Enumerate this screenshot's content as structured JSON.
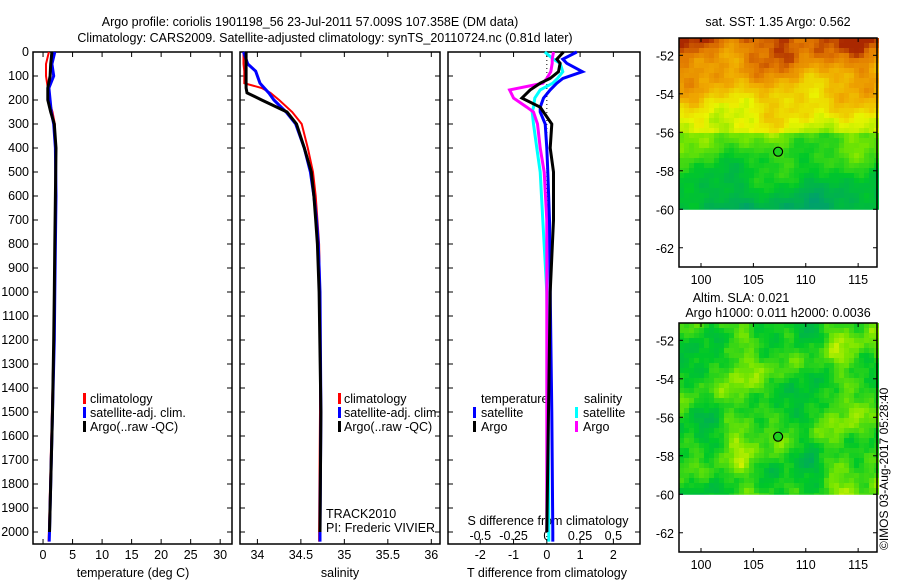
{
  "header": {
    "title_line1": "Argo profile: coriolis 1901198_56 23-Jul-2011 57.009S 107.358E (DM data)",
    "title_line2": "Climatology: CARS2009. Satellite-adjusted climatology: synTS_20110724.nc (0.81d later)"
  },
  "colors": {
    "climatology": "#ff0000",
    "satellite": "#0000ff",
    "argo": "#000000",
    "sal_satellite": "#00ffff",
    "sal_argo": "#ff00ff"
  },
  "legend": {
    "climatology": "climatology",
    "satellite": "satellite-adj. clim.",
    "argo": "Argo(..raw -QC)",
    "diff_temperature": "temperature",
    "diff_salinity": "salinity",
    "diff_satellite": "satellite",
    "diff_argo": "Argo"
  },
  "annotation": {
    "track": "TRACK2010",
    "pi": "PI: Frederic VIVIER"
  },
  "footer": {
    "copyright": "©IMOS 03-Aug-2017 05:28:40"
  },
  "chart_data": [
    {
      "type": "line",
      "title": "",
      "xlabel": "temperature (deg C)",
      "ylabel": "",
      "xlim": [
        -1.7,
        32
      ],
      "ylim": [
        0,
        2050
      ],
      "xticks": [
        "0",
        "5",
        "10",
        "15",
        "20",
        "25",
        "30"
      ],
      "yticks": [
        "0",
        "100",
        "200",
        "300",
        "400",
        "500",
        "600",
        "700",
        "800",
        "900",
        "1000",
        "1100",
        "1200",
        "1300",
        "1400",
        "1500",
        "1600",
        "1700",
        "1800",
        "1900",
        "2000"
      ],
      "depth": [
        0,
        50,
        100,
        150,
        200,
        250,
        300,
        400,
        600,
        800,
        1000,
        1200,
        1500,
        1800,
        2000,
        2040
      ],
      "series": [
        {
          "name": "climatology",
          "values": [
            1.0,
            0.5,
            0.5,
            0.8,
            1.0,
            1.6,
            2.0,
            2.1,
            2.1,
            2.0,
            1.9,
            1.8,
            1.5,
            1.2,
            1.0,
            0.95
          ]
        },
        {
          "name": "satellite-adj. clim.",
          "values": [
            2.0,
            1.5,
            1.8,
            1.0,
            1.2,
            1.4,
            1.8,
            2.1,
            2.2,
            2.1,
            2.0,
            1.9,
            1.6,
            1.3,
            1.1,
            1.05
          ]
        },
        {
          "name": "Argo(..raw -QC)",
          "values": [
            1.5,
            1.3,
            1.2,
            0.8,
            0.8,
            1.3,
            1.9,
            2.2,
            2.1,
            2.0,
            1.9,
            1.8,
            1.6,
            1.3,
            1.1
          ]
        }
      ]
    },
    {
      "type": "line",
      "xlabel": "salinity",
      "xlim": [
        33.8,
        36.1
      ],
      "ylim": [
        0,
        2050
      ],
      "xticks": [
        "34",
        "34.5",
        "35",
        "35.5",
        "36"
      ],
      "depth": [
        0,
        50,
        80,
        120,
        130,
        150,
        170,
        200,
        250,
        300,
        400,
        500,
        600,
        700,
        800,
        1000,
        1500,
        2000,
        2040
      ],
      "series": [
        {
          "name": "climatology",
          "values": [
            33.84,
            33.84,
            33.85,
            33.85,
            33.85,
            34.05,
            34.15,
            34.25,
            34.4,
            34.51,
            34.58,
            34.64,
            34.67,
            34.69,
            34.71,
            34.72,
            34.72,
            34.71,
            34.71
          ]
        },
        {
          "name": "satellite-adj. clim.",
          "values": [
            33.84,
            33.89,
            33.98,
            34.02,
            34.03,
            34.08,
            34.13,
            34.19,
            34.33,
            34.44,
            34.54,
            34.61,
            34.65,
            34.68,
            34.7,
            34.72,
            34.73,
            34.72,
            34.72
          ]
        },
        {
          "name": "Argo(..raw -QC)",
          "values": [
            33.87,
            33.87,
            33.87,
            33.87,
            33.87,
            33.87,
            33.88,
            34.05,
            34.34,
            34.45,
            34.54,
            34.62,
            34.65,
            34.67,
            34.69,
            34.71,
            34.73,
            34.72
          ]
        }
      ]
    },
    {
      "type": "line",
      "xlabel": "T difference from climatology",
      "x2label": "S difference from climatology",
      "xlim": [
        -2.97,
        2.8
      ],
      "x2lim": [
        -0.7425,
        0.7
      ],
      "ylim": [
        0,
        2050
      ],
      "xticks": [
        "-2",
        "-1",
        "0",
        "1",
        "2"
      ],
      "x2ticks": [
        "-0.5",
        "-0.25",
        "0",
        "0.25",
        "0.5"
      ],
      "depth": [
        0,
        30,
        47,
        82,
        110,
        130,
        158,
        192,
        230,
        250,
        300,
        400,
        500,
        700,
        1000,
        1500,
        2000,
        2040
      ],
      "series": [
        {
          "name": "temperature satellite",
          "axis": "T",
          "values": [
            0.9,
            0.48,
            0.6,
            1.07,
            0.48,
            0.3,
            0.1,
            -0.1,
            -0.2,
            -0.2,
            -0.05,
            0.0,
            0.03,
            0.08,
            0.1,
            0.15,
            0.18,
            0.18
          ]
        },
        {
          "name": "temperature Argo",
          "axis": "T",
          "values": [
            0.5,
            0.3,
            0.4,
            0.35,
            0.1,
            -0.2,
            -0.5,
            -0.75,
            -0.2,
            -0.1,
            0.15,
            0.1,
            0.2,
            0.2,
            0.1,
            0.05,
            0.0
          ]
        },
        {
          "name": "salinity satellite",
          "axis": "S",
          "values": [
            -0.015,
            0.05,
            0.1,
            0.12,
            0.08,
            0.045,
            -0.05,
            -0.09,
            -0.1,
            -0.11,
            -0.1,
            -0.075,
            -0.05,
            -0.03,
            0.0,
            0.01,
            0.015,
            0.015
          ]
        },
        {
          "name": "salinity Argo",
          "axis": "S",
          "values": [
            0.05,
            0.04,
            0.04,
            0.03,
            0.0,
            -0.03,
            -0.28,
            -0.25,
            -0.15,
            -0.1,
            -0.07,
            -0.05,
            -0.02,
            0.0,
            0.0,
            0.0,
            0.0
          ]
        }
      ]
    },
    {
      "type": "heatmap",
      "title": "sat. SST: 1.35 Argo: 0.562",
      "xlim": [
        97.9,
        116.8
      ],
      "ylim": [
        -63,
        -51.1
      ],
      "data_lat_min": -60,
      "xticks": [
        "100",
        "105",
        "110",
        "115"
      ],
      "yticks": [
        "-52",
        "-54",
        "-56",
        "-58",
        "-60",
        "-62"
      ],
      "marker": {
        "lon": 107.358,
        "lat": -57.009
      },
      "field": "sst"
    },
    {
      "type": "heatmap",
      "title": "Altim. SLA: 0.021",
      "subtitle": "Argo h1000: 0.011 h2000: 0.0036",
      "xlim": [
        97.9,
        116.8
      ],
      "ylim": [
        -63,
        -51.1
      ],
      "data_lat_min": -60,
      "xticks": [
        "100",
        "105",
        "110",
        "115"
      ],
      "yticks": [
        "-52",
        "-54",
        "-56",
        "-58",
        "-60",
        "-62"
      ],
      "marker": {
        "lon": 107.358,
        "lat": -57.009
      },
      "field": "sla"
    }
  ]
}
